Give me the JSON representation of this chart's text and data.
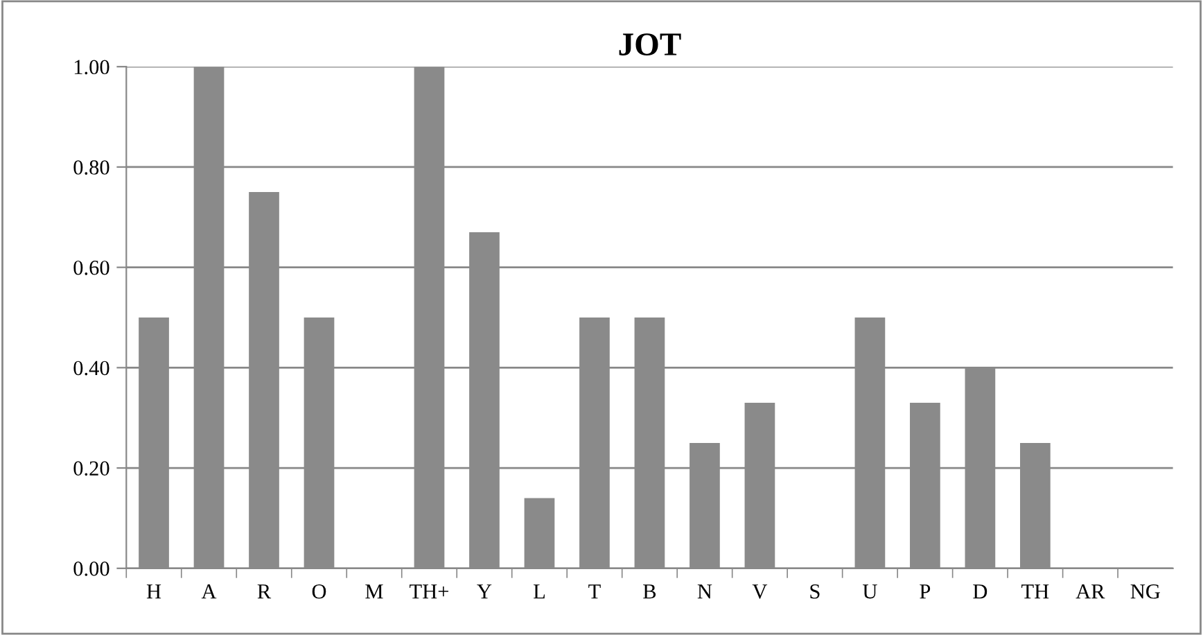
{
  "chart_data": {
    "type": "bar",
    "title": "JOT",
    "categories": [
      "H",
      "A",
      "R",
      "O",
      "M",
      "TH+",
      "Y",
      "L",
      "T",
      "B",
      "N",
      "V",
      "S",
      "U",
      "P",
      "D",
      "TH",
      "AR",
      "NG"
    ],
    "values": [
      0.5,
      1.0,
      0.75,
      0.5,
      0,
      1.0,
      0.67,
      0.14,
      0.5,
      0.5,
      0.25,
      0.33,
      0,
      0.5,
      0.33,
      0.4,
      0.25,
      0,
      0
    ],
    "color": "#8a8a8a",
    "ylim": [
      0,
      1.0
    ],
    "yticks": [
      {
        "value": 0,
        "label": "0.00"
      },
      {
        "value": 0.2,
        "label": "0.20"
      },
      {
        "value": 0.4,
        "label": "0.40"
      },
      {
        "value": 0.6,
        "label": "0.60"
      },
      {
        "value": 0.8,
        "label": "0.80"
      },
      {
        "value": 1.0,
        "label": "1.00"
      }
    ],
    "grid": "y",
    "legend": false
  }
}
